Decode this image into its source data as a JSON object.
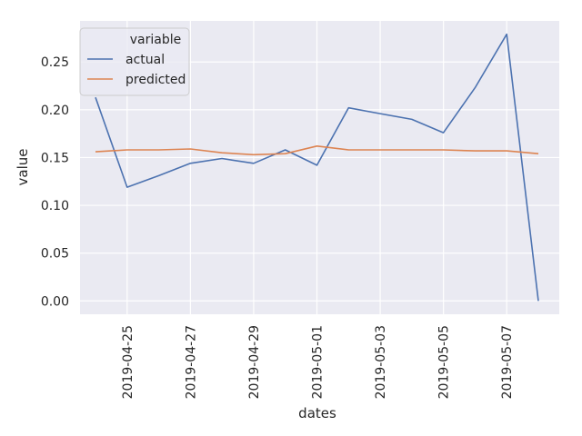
{
  "chart_data": {
    "type": "line",
    "title": "",
    "xlabel": "dates",
    "ylabel": "value",
    "x": [
      "2019-04-24",
      "2019-04-25",
      "2019-04-26",
      "2019-04-27",
      "2019-04-28",
      "2019-04-29",
      "2019-04-30",
      "2019-05-01",
      "2019-05-02",
      "2019-05-03",
      "2019-05-04",
      "2019-05-05",
      "2019-05-06",
      "2019-05-07",
      "2019-05-08"
    ],
    "xticks": [
      "2019-04-25",
      "2019-04-27",
      "2019-04-29",
      "2019-05-01",
      "2019-05-03",
      "2019-05-05",
      "2019-05-07"
    ],
    "yticks": [
      0.0,
      0.05,
      0.1,
      0.15,
      0.2,
      0.25
    ],
    "ytick_labels": [
      "0.00",
      "0.05",
      "0.10",
      "0.15",
      "0.20",
      "0.25"
    ],
    "ylim": [
      -0.014,
      0.293
    ],
    "legend": {
      "title": "variable",
      "placement": "top-left"
    },
    "series": [
      {
        "name": "actual",
        "color": "#4c72b0",
        "values": [
          0.213,
          0.119,
          0.131,
          0.144,
          0.149,
          0.144,
          0.158,
          0.142,
          0.202,
          0.196,
          0.19,
          0.176,
          0.223,
          0.279,
          0.0
        ]
      },
      {
        "name": "predicted",
        "color": "#dd8452",
        "values": [
          0.156,
          0.158,
          0.158,
          0.159,
          0.155,
          0.153,
          0.154,
          0.162,
          0.158,
          0.158,
          0.158,
          0.158,
          0.157,
          0.157,
          0.154
        ]
      }
    ]
  }
}
